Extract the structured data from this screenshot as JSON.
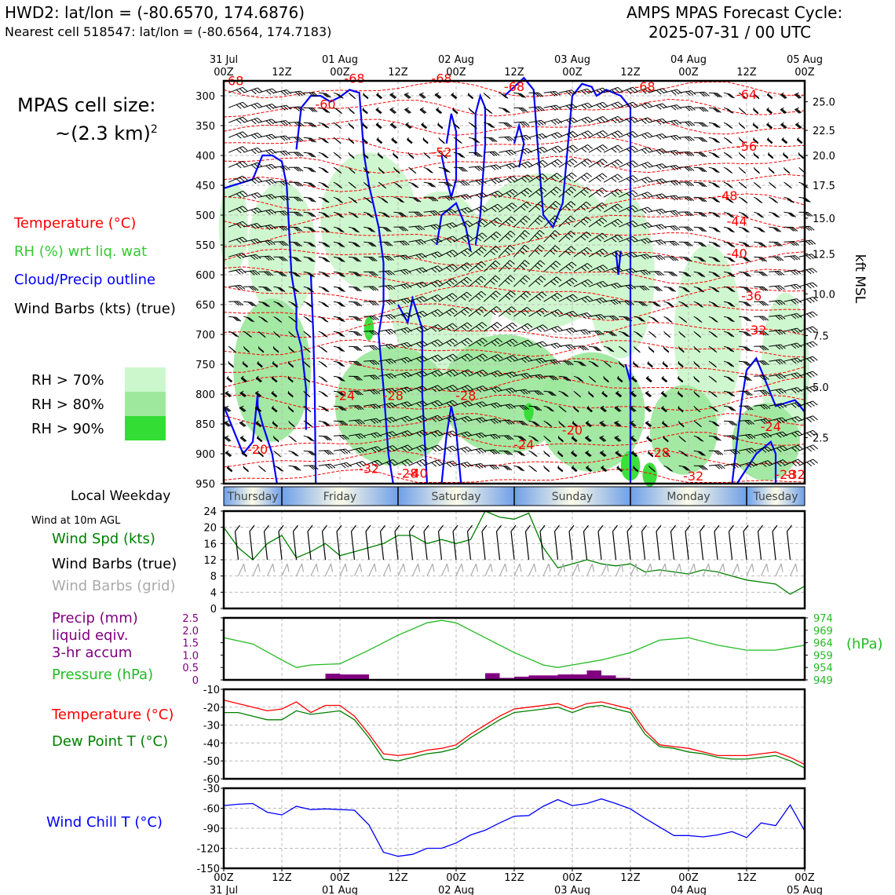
{
  "header": {
    "station_title": "HWD2: lat/lon = (-80.6570, 174.6876)",
    "nearest_cell": "Nearest cell 518547: lat/lon = (-80.6564, 174.7183)",
    "cycle_title": "AMPS MPAS Forecast Cycle:",
    "cycle_time": "2025-07-31 / 00 UTC"
  },
  "left_panel": {
    "cell_size_line1": "MPAS cell size:",
    "cell_size_line2": "~(2.3 km)",
    "cell_size_sup": "2",
    "legend_temperature": "Temperature (°C)",
    "legend_rh": "RH (%) wrt liq. wat",
    "legend_cloud": "Cloud/Precip outline",
    "legend_wind": "Wind Barbs (kts) (true)",
    "rh70": "RH > 70%",
    "rh80": "RH > 80%",
    "rh90": "RH > 90%",
    "rh70_color": "#ccf7cc",
    "rh80_color": "#9ee89e",
    "rh90_color": "#33dd33",
    "local_weekday": "Local Weekday",
    "wind_10m": "Wind at 10m AGL",
    "wind_spd": "Wind Spd (kts)",
    "wind_true": "Wind Barbs (true)",
    "wind_grid": "Wind Barbs (grid)",
    "precip_line1": "Precip (mm)",
    "precip_line2": "liquid eqiv.",
    "precip_line3": "3-hr accum",
    "pressure": "Pressure (hPa)",
    "temp": "Temperature (°C)",
    "dewpoint": "Dew Point T (°C)",
    "windchill": "Wind Chill T (°C)"
  },
  "colors": {
    "temperature": "#ff0000",
    "rh": "#33cc33",
    "cloud": "#0000ff",
    "wind": "#000000",
    "wind_grid": "#aaaaaa",
    "wind_speed": "#008000",
    "precip": "#800080",
    "pressure": "#22bb22",
    "dewpoint": "#008000",
    "windchill": "#0000ff"
  },
  "chart_data": [
    {
      "type": "heatmap",
      "title": "Time-height cross section",
      "top_time_labels": [
        [
          "31 Jul",
          "00Z"
        ],
        [
          "",
          "12Z"
        ],
        [
          "01 Aug",
          "00Z"
        ],
        [
          "",
          "12Z"
        ],
        [
          "02 Aug",
          "00Z"
        ],
        [
          "",
          "12Z"
        ],
        [
          "03 Aug",
          "00Z"
        ],
        [
          "",
          "12Z"
        ],
        [
          "04 Aug",
          "00Z"
        ],
        [
          "",
          "12Z"
        ],
        [
          "05 Aug",
          "00Z"
        ]
      ],
      "x_hours": [
        0,
        12,
        24,
        36,
        48,
        60,
        72,
        84,
        96,
        108,
        120
      ],
      "y_pressure_ticks": [
        300,
        350,
        400,
        450,
        500,
        550,
        600,
        650,
        700,
        750,
        800,
        850,
        900,
        950
      ],
      "ylim_hPa": [
        950,
        275
      ],
      "right_axis_label": "kft MSL",
      "right_axis_ticks": [
        {
          "label": "25.0",
          "p": 310
        },
        {
          "label": "22.5",
          "p": 358
        },
        {
          "label": "20.0",
          "p": 400
        },
        {
          "label": "17.5",
          "p": 450
        },
        {
          "label": "15.0",
          "p": 505
        },
        {
          "label": "12.5",
          "p": 565
        },
        {
          "label": "10.0",
          "p": 632
        },
        {
          "label": "7.5",
          "p": 702
        },
        {
          "label": "5.0",
          "p": 788
        },
        {
          "label": "2.5",
          "p": 873
        }
      ],
      "temperature_labels": [
        {
          "t": "-68",
          "h": 2,
          "p": 282
        },
        {
          "t": "-68",
          "h": 27,
          "p": 278
        },
        {
          "t": "-68",
          "h": 45,
          "p": 278
        },
        {
          "t": "-68",
          "h": 60,
          "p": 292
        },
        {
          "t": "-68",
          "h": 87,
          "p": 292
        },
        {
          "t": "-64",
          "h": 108,
          "p": 305
        },
        {
          "t": "-60",
          "h": 21,
          "p": 322
        },
        {
          "t": "-52",
          "h": 45,
          "p": 402
        },
        {
          "t": "-56",
          "h": 108,
          "p": 392
        },
        {
          "t": "-48",
          "h": 104,
          "p": 475
        },
        {
          "t": "-44",
          "h": 106,
          "p": 518
        },
        {
          "t": "-40",
          "h": 106,
          "p": 572
        },
        {
          "t": "-36",
          "h": 109,
          "p": 643
        },
        {
          "t": "-32",
          "h": 110,
          "p": 700
        },
        {
          "t": "-28",
          "h": 35,
          "p": 810
        },
        {
          "t": "-28",
          "h": 50,
          "p": 810
        },
        {
          "t": "-24",
          "h": 25,
          "p": 810
        },
        {
          "t": "-24",
          "h": 62,
          "p": 892
        },
        {
          "t": "-24",
          "h": 113,
          "p": 862
        },
        {
          "t": "-20",
          "h": 7,
          "p": 900
        },
        {
          "t": "-20",
          "h": 72,
          "p": 868
        },
        {
          "t": "-28",
          "h": 90,
          "p": 905
        },
        {
          "t": "-32",
          "h": 30,
          "p": 932
        },
        {
          "t": "-32",
          "h": 97,
          "p": 945
        },
        {
          "t": "-28",
          "h": 38,
          "p": 940
        },
        {
          "t": "-40",
          "h": 40,
          "p": 940
        },
        {
          "t": "-28",
          "h": 116,
          "p": 942
        },
        {
          "t": "-32",
          "h": 118,
          "p": 942
        }
      ]
    },
    {
      "type": "bar",
      "title": "Local Weekday",
      "categories": [
        "Thursday",
        "Friday",
        "Saturday",
        "Sunday",
        "Monday",
        "Tuesday"
      ]
    },
    {
      "type": "line",
      "title": "Wind at 10m AGL",
      "ylabel": "Wind Spd (kts)",
      "ylim": [
        0,
        24
      ],
      "yticks": [
        0,
        4,
        8,
        12,
        16,
        20,
        24
      ],
      "x": [
        0,
        3,
        6,
        9,
        12,
        15,
        18,
        21,
        24,
        27,
        30,
        33,
        36,
        39,
        42,
        45,
        48,
        51,
        54,
        57,
        60,
        63,
        66,
        69,
        72,
        75,
        78,
        81,
        84,
        87,
        90,
        93,
        96,
        99,
        102,
        105,
        108,
        111,
        114,
        117,
        120
      ],
      "values": [
        20,
        15,
        12,
        16,
        18,
        12.5,
        14,
        16,
        13,
        14,
        15,
        16,
        18,
        18,
        16,
        17,
        16,
        17,
        24,
        22.5,
        22,
        23.5,
        15,
        10,
        11,
        12,
        11,
        10.5,
        11,
        9,
        9.5,
        9,
        8.5,
        9.5,
        9,
        8,
        7,
        6.5,
        6,
        3.5,
        5.5
      ]
    },
    {
      "type": "bar",
      "title": "Precip and Pressure",
      "y_left_label": "Precip (mm)",
      "y_left_lim": [
        0,
        2.5
      ],
      "y_left_ticks": [
        "0",
        "0.5",
        "1.0",
        "1.5",
        "2.0",
        "2.5"
      ],
      "y_right_label": "(hPa)",
      "y_right_lim": [
        949,
        974
      ],
      "y_right_ticks": [
        "949",
        "954",
        "959",
        "964",
        "969",
        "974"
      ],
      "precip_bars": [
        {
          "x": 22.5,
          "v": 0.25
        },
        {
          "x": 25.5,
          "v": 0.22
        },
        {
          "x": 28.5,
          "v": 0.22
        },
        {
          "x": 55.5,
          "v": 0.27
        },
        {
          "x": 58.5,
          "v": 0.08
        },
        {
          "x": 61.5,
          "v": 0.13
        },
        {
          "x": 64.5,
          "v": 0.18
        },
        {
          "x": 67.5,
          "v": 0.18
        },
        {
          "x": 70.5,
          "v": 0.22
        },
        {
          "x": 73.5,
          "v": 0.22
        },
        {
          "x": 76.5,
          "v": 0.38
        },
        {
          "x": 79.5,
          "v": 0.18
        },
        {
          "x": 82.5,
          "v": 0.08
        }
      ],
      "pressure_x": [
        0,
        6,
        12,
        15,
        18,
        24,
        30,
        36,
        42,
        45,
        48,
        54,
        60,
        66,
        69,
        72,
        78,
        84,
        90,
        96,
        102,
        108,
        114,
        120
      ],
      "pressure": [
        966,
        963.5,
        957,
        954,
        955,
        955.5,
        961,
        967,
        972,
        973,
        972,
        966,
        960,
        955,
        954,
        955,
        957,
        960,
        965,
        966,
        963,
        961,
        961,
        963
      ]
    },
    {
      "type": "line",
      "title": "Temperature and Dew Point",
      "ylim": [
        -60,
        -10
      ],
      "yticks": [
        -60,
        -50,
        -40,
        -30,
        -20,
        -10
      ],
      "x": [
        0,
        3,
        6,
        9,
        12,
        15,
        18,
        21,
        24,
        27,
        30,
        33,
        36,
        39,
        42,
        45,
        48,
        51,
        54,
        57,
        60,
        63,
        66,
        69,
        72,
        75,
        78,
        81,
        84,
        87,
        90,
        93,
        96,
        99,
        102,
        105,
        108,
        111,
        114,
        117,
        120
      ],
      "series": [
        {
          "name": "Temperature (°C)",
          "values": [
            -16,
            -18,
            -20,
            -22,
            -21,
            -17,
            -23,
            -19,
            -19,
            -25,
            -35,
            -46,
            -47,
            -46,
            -44,
            -43,
            -41,
            -35,
            -30,
            -25,
            -21,
            -20,
            -19,
            -18,
            -21,
            -18,
            -17,
            -19,
            -21,
            -33,
            -41,
            -42,
            -43,
            -45,
            -47,
            -47,
            -47,
            -46,
            -45,
            -48,
            -52
          ]
        },
        {
          "name": "Dew Point T (°C)",
          "values": [
            -23,
            -23,
            -25,
            -27,
            -27,
            -22,
            -24,
            -23,
            -22,
            -27,
            -37,
            -49,
            -50,
            -48,
            -46,
            -45,
            -43,
            -37,
            -32,
            -27,
            -23,
            -22,
            -21,
            -20,
            -23,
            -20,
            -19,
            -21,
            -23,
            -35,
            -42,
            -43,
            -45,
            -46,
            -48,
            -49,
            -49,
            -48,
            -47,
            -50,
            -54
          ]
        }
      ]
    },
    {
      "type": "line",
      "title": "Wind Chill",
      "ylabel": "Wind Chill T (°C)",
      "ylim": [
        -150,
        -30
      ],
      "yticks": [
        -150,
        -120,
        -90,
        -60,
        -30
      ],
      "x": [
        0,
        3,
        6,
        9,
        12,
        15,
        18,
        21,
        24,
        27,
        30,
        33,
        36,
        39,
        42,
        45,
        48,
        51,
        54,
        57,
        60,
        63,
        66,
        69,
        72,
        75,
        78,
        81,
        84,
        87,
        90,
        93,
        96,
        99,
        102,
        105,
        108,
        111,
        114,
        117,
        120
      ],
      "values": [
        -56,
        -54,
        -53,
        -66,
        -70,
        -57,
        -62,
        -61,
        -62,
        -63,
        -85,
        -126,
        -132,
        -129,
        -120,
        -120,
        -112,
        -100,
        -93,
        -82,
        -72,
        -71,
        -57,
        -47,
        -56,
        -53,
        -46,
        -53,
        -61,
        -75,
        -88,
        -101,
        -101,
        -103,
        -100,
        -95,
        -104,
        -82,
        -86,
        -55,
        -94
      ]
    }
  ],
  "bottom_axis": [
    [
      "00Z",
      "31 Jul"
    ],
    [
      "12Z",
      ""
    ],
    [
      "00Z",
      "01 Aug"
    ],
    [
      "12Z",
      ""
    ],
    [
      "00Z",
      "02 Aug"
    ],
    [
      "12Z",
      ""
    ],
    [
      "00Z",
      "03 Aug"
    ],
    [
      "12Z",
      ""
    ],
    [
      "00Z",
      "04 Aug"
    ],
    [
      "12Z",
      ""
    ],
    [
      "00Z",
      "05 Aug"
    ]
  ]
}
